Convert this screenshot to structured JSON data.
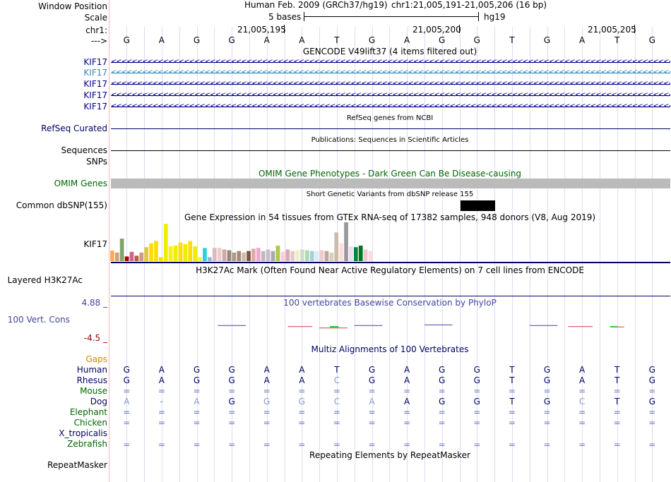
{
  "left_labels": {
    "window_position": "Window Position",
    "scale": "Scale",
    "chr": "chr1:",
    "arrow": "--->",
    "kif17_1": "KIF17",
    "kif17_2": "KIF17",
    "kif17_3": "KIF17",
    "kif17_4": "KIF17",
    "kif17_5": "KIF17",
    "refseq": "RefSeq Curated",
    "sequences": "Sequences",
    "snps": "SNPs",
    "omim": "OMIM Genes",
    "dbsnp": "Common dbSNP(155)",
    "gtex": "KIF17",
    "h3k27ac": "Layered H3K27Ac",
    "cons_max": "4.88 _",
    "cons_label": "100 Vert. Cons",
    "cons_min": "-4.5 _",
    "gaps": "Gaps",
    "species": [
      "Human",
      "Rhesus",
      "Mouse",
      "Dog",
      "Elephant",
      "Chicken",
      "X_tropicalis",
      "Zebrafish"
    ],
    "repeatmasker": "RepeatMasker"
  },
  "header": {
    "assembly": "Human Feb. 2009 (GRCh37/hg19)",
    "position": "chr1:21,005,191-21,005,206 (16 bp)",
    "scale_text": "5 bases",
    "scale_db": "hg19"
  },
  "ruler": {
    "ticks": [
      "21,005,195",
      "21,005,200",
      "21,005,205"
    ]
  },
  "dna": {
    "bases": [
      "G",
      "A",
      "G",
      "G",
      "A",
      "A",
      "T",
      "G",
      "A",
      "G",
      "G",
      "T",
      "G",
      "A",
      "T",
      "G"
    ]
  },
  "tracks": {
    "gencode_title": "GENCODE V49lift37 (4 items filtered out)",
    "refseq_title": "RefSeq genes from NCBI",
    "pubs_title": "Publications: Sequences in Scientific Articles",
    "omim_title": "OMIM Gene Phenotypes - Dark Green Can Be Disease-causing",
    "dbsnp_title": "Short Genetic Variants from dbSNP release 155",
    "gtex_title": "Gene Expression in 54 tissues from GTEx RNA-seq of 17382 samples, 948 donors (V8, Aug 2019)",
    "h3k27ac_title": "H3K27Ac Mark (Often Found Near Active Regulatory Elements) on 7 cell lines from ENCODE",
    "phylop_title": "100 vertebrates Basewise Conservation by PhyloP",
    "multiz_title": "Multiz Alignments of 100 Vertebrates",
    "rmsk_title": "Repeating Elements by RepeatMasker"
  },
  "alignments": {
    "Human": [
      "G",
      "A",
      "G",
      "G",
      "A",
      "A",
      "T",
      "G",
      "A",
      "G",
      "G",
      "T",
      "G",
      "A",
      "T",
      "G"
    ],
    "Rhesus": [
      "G",
      "A",
      "G",
      "G",
      "A",
      "A",
      "C",
      "G",
      "A",
      "G",
      "G",
      "T",
      "G",
      "A",
      "T",
      "G"
    ],
    "Mouse": [
      "=",
      "=",
      "=",
      "=",
      "=",
      "=",
      "=",
      "=",
      "=",
      "=",
      "=",
      "=",
      "=",
      "=",
      "=",
      "="
    ],
    "Dog": [
      "A",
      "-",
      "A",
      "G",
      "G",
      "G",
      "C",
      "A",
      "A",
      "G",
      "G",
      "T",
      "G",
      "C",
      "T",
      "G"
    ],
    "Elephant": [
      "=",
      "=",
      "=",
      "=",
      "=",
      "=",
      "=",
      "=",
      "=",
      "=",
      "=",
      "=",
      "=",
      "=",
      "=",
      "="
    ],
    "Chicken": [
      "=",
      "=",
      "=",
      "=",
      "=",
      "=",
      "=",
      "=",
      "=",
      "=",
      "=",
      "=",
      "=",
      "=",
      "=",
      "="
    ],
    "X_tropicalis": [
      "",
      "",
      "",
      "",
      "",
      "",
      "",
      "",
      "",
      "",
      "",
      "",
      "",
      "",
      "",
      ""
    ],
    "Zebrafish": [
      "=",
      "=",
      "=",
      "=",
      "=",
      "=",
      "=",
      "=",
      "=",
      "=",
      "=",
      "=",
      "=",
      "=",
      "=",
      "="
    ]
  },
  "gtex_bars": {
    "values": [
      0.27,
      0.22,
      0.58,
      0.12,
      0.24,
      0.14,
      0.22,
      0.36,
      0.46,
      0.52,
      0.1,
      0.96,
      0.38,
      0.4,
      0.48,
      0.44,
      0.52,
      0.38,
      0.1,
      0.34,
      0.1,
      0.34,
      0.34,
      0.3,
      0.28,
      0.22,
      0.26,
      0.22,
      0.26,
      0.32,
      0.34,
      0.26,
      0.3,
      0.26,
      0.4,
      0.24,
      0.3,
      0.26,
      0.28,
      0.3,
      0.28,
      0.26,
      0.26,
      0.28,
      0.26,
      0.22,
      0.74,
      0.46,
      1.0,
      0.38,
      0.36,
      0.4,
      0.3,
      0.26
    ],
    "colors": [
      "#ffaa55",
      "#d49f81",
      "#7fa46a",
      "#aa0000",
      "#cc6688",
      "#b85d3c",
      "#cc9988",
      "#ddcc33",
      "#ffdd00",
      "#ffdd00",
      "#ffdd00",
      "#eeee00",
      "#ffee11",
      "#eeee00",
      "#ffdd00",
      "#eeee00",
      "#ffdd00",
      "#eeee00",
      "#ffee33",
      "#33ccdd",
      "#88bbcc",
      "#ddbbbb",
      "#eecccc",
      "#ccaaaa",
      "#998877",
      "#aa9988",
      "#aa8877",
      "#ccbbaa",
      "#775544",
      "#ddaaaa",
      "#eeaacc",
      "#bbbbbb",
      "#ccbbcc",
      "#aaaaaa",
      "#aacc44",
      "#ffccdd",
      "#ddaaaa",
      "#ddcccc",
      "#eeeecc",
      "#ccddcc",
      "#aaddaa",
      "#aaccdd",
      "#ddeeee",
      "#eecccc",
      "#bbaa99",
      "#ddccbb",
      "#ccbbaa",
      "#ffdddd",
      "#999999",
      "#eeddee",
      "#008844",
      "#007722",
      "#eecccc",
      "#ffdddd"
    ]
  },
  "phylop_segments": [
    {
      "start": 3.1,
      "end": 3.9,
      "value": 0.1
    },
    {
      "start": 5.1,
      "end": 5.8,
      "value": -0.1
    },
    {
      "start": 6.0,
      "end": 6.8,
      "value": -0.35
    },
    {
      "start": 7.0,
      "end": 7.8,
      "value": 0.1
    },
    {
      "start": 9.0,
      "end": 9.8,
      "value": 0.2
    },
    {
      "start": 12.0,
      "end": 12.8,
      "value": 0.1
    },
    {
      "start": 13.1,
      "end": 13.8,
      "value": -0.1
    },
    {
      "start": 14.3,
      "end": 14.7,
      "value": -0.15
    }
  ],
  "colors": {
    "navy": "#000066",
    "blue_label": "#000088",
    "teal": "#3388bb",
    "omim_green": "#006600",
    "omim_gray": "#bbbbbb",
    "gaps_orange": "#cc8800",
    "phylop_blue": "#444499",
    "neg_red": "#990000",
    "species_green": "#006600",
    "species_blue": "#000066"
  }
}
